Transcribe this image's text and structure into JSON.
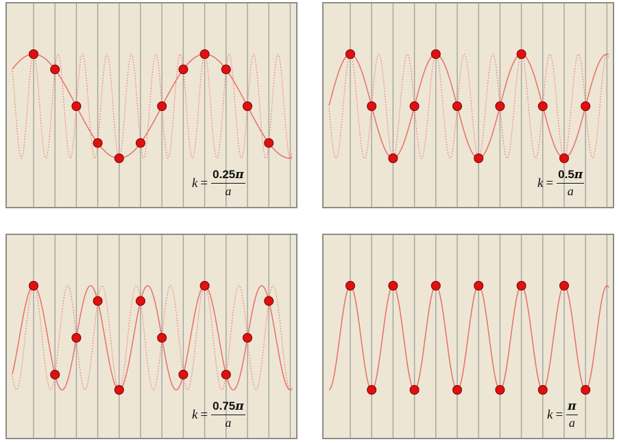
{
  "panels": [
    {
      "id": "k-0.25",
      "k": 0.25,
      "k_numerator": "0.25",
      "k_pi": "π",
      "k_denominator": "a",
      "k_variable": "k",
      "equals": "="
    },
    {
      "id": "k-0.5",
      "k": 0.5,
      "k_numerator": "0.5",
      "k_pi": "π",
      "k_denominator": "a",
      "k_variable": "k",
      "equals": "="
    },
    {
      "id": "k-0.75",
      "k": 0.75,
      "k_numerator": "0.75",
      "k_pi": "π",
      "k_denominator": "a",
      "k_variable": "k",
      "equals": "="
    },
    {
      "id": "k-1",
      "k": 1.0,
      "k_numerator": "",
      "k_pi": "π",
      "k_denominator": "a",
      "k_variable": "k",
      "equals": "="
    }
  ],
  "colors": {
    "panel_background": "#ede6d5",
    "border": "#8c8c86",
    "lattice_line": "#a3a39c",
    "wave_solid": "#e8766d",
    "wave_dotted": "#ef8e86",
    "atom_fill": "#e01010",
    "atom_stroke": "#7a0000"
  }
}
